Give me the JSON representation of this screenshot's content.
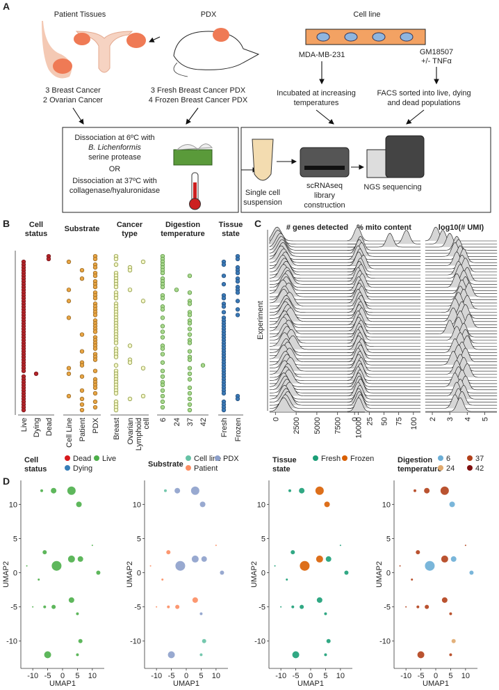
{
  "panel_a": {
    "label": "A",
    "patient": {
      "title": "Patient Tissues",
      "caption": [
        "3 Breast Cancer",
        "2 Ovarian Cancer"
      ]
    },
    "pdx": {
      "title": "PDX",
      "caption": [
        "3 Fresh Breast Cancer PDX",
        "4 Frozen Breast Cancer PDX"
      ]
    },
    "cell_line": {
      "title": "Cell line",
      "left": {
        "name": "MDA-MB-231",
        "caption": [
          "Incubated at increasing",
          "temperatures"
        ]
      },
      "right": {
        "name": [
          "GM18507",
          "+/- TNFα"
        ],
        "caption": [
          "FACS sorted into live, dying",
          "and dead populations"
        ]
      }
    },
    "dissociation": {
      "line1": "Dissociation at 6ºC with",
      "enzyme": "B. Lichenformis",
      "line2": "serine protease",
      "or": "OR",
      "line3": "Dissociation at 37ºC with",
      "line4": "collagenase/hyaluronidase"
    },
    "workflow": {
      "step1": [
        "Single cell",
        "suspension"
      ],
      "step2": [
        "scRNAseq",
        "library",
        "construction"
      ],
      "step3": "NGS sequencing"
    }
  },
  "panel_b": {
    "label": "B",
    "columns": [
      {
        "title": [
          "Cell",
          "status"
        ],
        "levels": [
          "Live",
          "Dying",
          "Dead"
        ],
        "color": "#b3252a",
        "stroke": "#6e1014",
        "values": [
          2,
          2,
          0,
          0,
          0,
          0,
          0,
          0,
          0,
          0,
          0,
          0,
          0,
          0,
          0,
          0,
          0,
          0,
          0,
          0,
          0,
          0,
          0,
          0,
          0,
          0,
          0,
          0,
          0,
          0,
          0,
          0,
          0,
          0,
          0,
          0,
          0,
          0,
          0,
          0,
          0,
          0,
          1,
          0,
          0,
          0,
          0,
          0,
          0,
          0,
          0,
          0,
          0,
          0,
          0,
          0
        ]
      },
      {
        "title": [
          "Substrate"
        ],
        "levels": [
          "Cell Line",
          "Patient",
          "PDX"
        ],
        "color": "#e8a544",
        "stroke": "#8a5a14",
        "values": [
          2,
          2,
          0,
          2,
          2,
          1,
          2,
          2,
          1,
          2,
          2,
          2,
          0,
          2,
          2,
          2,
          0,
          2,
          2,
          2,
          2,
          2,
          0,
          2,
          2,
          2,
          2,
          2,
          1,
          2,
          2,
          2,
          2,
          2,
          1,
          2,
          2,
          2,
          1,
          1,
          0,
          2,
          0,
          1,
          2,
          2,
          2,
          2,
          1,
          2,
          0,
          1,
          2,
          1,
          2,
          1
        ]
      },
      {
        "title": [
          "Cancer",
          "type"
        ],
        "levels": [
          "Breast",
          "Ovarian",
          [
            "Lymphoid",
            "cell"
          ]
        ],
        "color": "#f4f6c8",
        "stroke": "#7c8a2a",
        "values": [
          0,
          0,
          2,
          0,
          1,
          1,
          0,
          0,
          0,
          0,
          0,
          0,
          1,
          0,
          0,
          0,
          2,
          0,
          0,
          0,
          0,
          0,
          0,
          0,
          0,
          0,
          0,
          0,
          0,
          0,
          0,
          0,
          1,
          0,
          0,
          0,
          0,
          1,
          1,
          0,
          2,
          0,
          0,
          0,
          0,
          0,
          0,
          0,
          0,
          0,
          2,
          1,
          0,
          0,
          0,
          0
        ]
      },
      {
        "title": [
          "Digestion",
          "temperature"
        ],
        "levels": [
          6,
          24,
          37,
          42
        ],
        "color": "#a9d88e",
        "stroke": "#4d8a32",
        "values": [
          0,
          0,
          0,
          0,
          0,
          0,
          0,
          2,
          0,
          0,
          0,
          0,
          1,
          2,
          0,
          0,
          2,
          2,
          0,
          0,
          2,
          2,
          0,
          2,
          2,
          0,
          2,
          0,
          2,
          0,
          2,
          2,
          0,
          0,
          2,
          0,
          2,
          2,
          0,
          3,
          2,
          0,
          2,
          0,
          2,
          0,
          0,
          2,
          0,
          2,
          0,
          2,
          0,
          2,
          0,
          2
        ]
      },
      {
        "title": [
          "Tissue",
          "state"
        ],
        "levels": [
          "Fresh",
          "Frozen"
        ],
        "color": "#3b79b6",
        "stroke": "#1d4672",
        "values": [
          1,
          1,
          0,
          0,
          1,
          1,
          1,
          0,
          1,
          1,
          0,
          1,
          1,
          1,
          0,
          0,
          1,
          0,
          0,
          1,
          0,
          1,
          0,
          0,
          0,
          0,
          0,
          0,
          0,
          0,
          0,
          0,
          0,
          0,
          0,
          0,
          0,
          0,
          0,
          0,
          0,
          0,
          0,
          0,
          0,
          0,
          0,
          0,
          0,
          0,
          1,
          1,
          0,
          0,
          0,
          0
        ]
      }
    ]
  },
  "panel_c": {
    "label": "C",
    "ylabel": "Experiment",
    "panels": [
      {
        "title": "# genes detected",
        "xlim": [
          -700,
          10800
        ],
        "xticks": [
          0,
          2500,
          5000,
          7500,
          10000
        ],
        "peaks": [
          200,
          300,
          600,
          700,
          800,
          900,
          700,
          1000,
          1200,
          900,
          1100,
          1300,
          1000,
          1400,
          1500,
          1200,
          1300,
          900,
          1600,
          1100,
          1000,
          1700,
          1300,
          1400,
          1200,
          1500,
          1800,
          1100,
          1300,
          1000,
          1600,
          1200,
          1400,
          1900,
          1100,
          2100,
          1300,
          1500,
          1000,
          1700,
          1200,
          1400,
          1800,
          1100,
          1500,
          1300,
          1600,
          1000,
          1200,
          1400,
          1700,
          1100,
          1300,
          1500,
          1200,
          1000
        ]
      },
      {
        "title": "% mito content",
        "xlim": [
          -12,
          112
        ],
        "xticks": [
          0,
          25,
          50,
          75,
          100
        ],
        "peaks": [
          5,
          88,
          60,
          10,
          8,
          12,
          6,
          9,
          7,
          15,
          10,
          8,
          11,
          6,
          9,
          13,
          7,
          10,
          8,
          12,
          6,
          9,
          11,
          7,
          10,
          8,
          12,
          6,
          9,
          7,
          11,
          8,
          10,
          6,
          9,
          7,
          12,
          8,
          10,
          6,
          9,
          7,
          11,
          8,
          10,
          6,
          9,
          7,
          8,
          10,
          6,
          9,
          7,
          8,
          10,
          7
        ]
      },
      {
        "title": "log10(# UMI)",
        "xlim": [
          1.6,
          5.7
        ],
        "xticks": [
          2,
          3,
          4,
          5
        ],
        "peaks": [
          2.2,
          2.6,
          3.0,
          3.4,
          3.5,
          3.3,
          3.6,
          3.8,
          3.4,
          3.7,
          3.9,
          3.5,
          3.6,
          4.0,
          3.8,
          3.4,
          3.9,
          3.7,
          4.1,
          3.6,
          3.8,
          3.5,
          4.0,
          3.3,
          3.7,
          3.9,
          3.2,
          3.6,
          4.1,
          3.5,
          3.0,
          3.8,
          3.4,
          3.9,
          3.6,
          4.0,
          3.3,
          3.7,
          3.5,
          3.9,
          3.2,
          3.6,
          3.8,
          3.4,
          4.0,
          3.5,
          3.7,
          3.3,
          3.9,
          3.6,
          3.4,
          3.8,
          3.5,
          3.7,
          3.3,
          3.6
        ]
      }
    ]
  },
  "panel_d": {
    "label": "D",
    "xlabel": "UMAP1",
    "ylabel": "UMAP2",
    "xlim": [
      -14,
      14
    ],
    "ylim": [
      -14,
      13.5
    ],
    "xticks": [
      -10,
      -5,
      0,
      5,
      10
    ],
    "yticks": [
      -10,
      -5,
      0,
      5,
      10
    ],
    "clusters": {
      "x": [
        -7,
        -3,
        3,
        5.5,
        -6,
        -2,
        3,
        6,
        10,
        -8,
        -12,
        -10,
        -6,
        -3,
        3,
        5,
        6,
        -5,
        5,
        12
      ],
      "y": [
        12,
        12,
        12,
        10,
        3,
        1,
        2,
        2,
        4,
        -1,
        1,
        -5,
        -5,
        -5,
        -4,
        -6,
        -10,
        -12,
        -12,
        0
      ],
      "r": [
        2,
        4,
        6,
        4,
        3,
        7,
        5,
        4,
        1,
        1.5,
        1,
        1,
        2,
        3,
        4,
        2,
        3,
        5,
        2,
        3
      ]
    },
    "panels": [
      {
        "title": [
          "Cell",
          "status"
        ],
        "levels": [
          "Dead",
          "Live",
          "Dying"
        ],
        "colors": [
          "#d7191c",
          "#4daf4a",
          "#377eb8"
        ],
        "groups": [
          1,
          1,
          1,
          1,
          1,
          1,
          1,
          1,
          1,
          1,
          1,
          1,
          1,
          1,
          1,
          1,
          1,
          1,
          1,
          1
        ]
      },
      {
        "title": [
          "Substrate"
        ],
        "levels": [
          "Cell line",
          "PDX",
          "Patient"
        ],
        "colors": [
          "#66c2a5",
          "#8da0cb",
          "#fc8d62"
        ],
        "groups": [
          0,
          1,
          1,
          1,
          2,
          1,
          1,
          1,
          2,
          2,
          2,
          2,
          2,
          2,
          2,
          1,
          0,
          1,
          0,
          1
        ]
      },
      {
        "title": [
          "Tissue",
          "state"
        ],
        "levels": [
          "Fresh",
          "Frozen"
        ],
        "colors": [
          "#1b9e77",
          "#d95f02"
        ],
        "groups": [
          0,
          0,
          1,
          1,
          0,
          1,
          1,
          0,
          0,
          0,
          0,
          0,
          0,
          0,
          0,
          0,
          0,
          0,
          0,
          0
        ]
      },
      {
        "title": [
          "Digestion",
          "temperature"
        ],
        "levels": [
          6,
          37,
          24,
          42
        ],
        "colors": [
          "#6baed6",
          "#b2401a",
          "#e0a96d",
          "#7f0f0f"
        ],
        "groups": [
          1,
          1,
          1,
          0,
          1,
          0,
          1,
          0,
          1,
          1,
          1,
          1,
          1,
          1,
          1,
          1,
          2,
          1,
          1,
          0
        ]
      }
    ]
  }
}
